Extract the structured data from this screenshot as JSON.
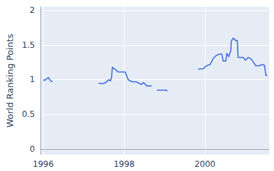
{
  "chart_data": {
    "type": "line",
    "y_label": "World Ranking Points",
    "x": [
      1996.0,
      1996.03,
      1996.06,
      1996.1,
      1996.13,
      1996.16,
      1996.19,
      1996.23,
      1996.8,
      1997.37,
      1997.44,
      1997.52,
      1997.57,
      1997.62,
      1997.66,
      1997.69,
      1997.71,
      1997.86,
      1998.03,
      1998.1,
      1998.19,
      1998.29,
      1998.33,
      1998.43,
      1998.48,
      1998.56,
      1998.68,
      1998.75,
      1998.81,
      1999.05,
      1999.06,
      1999.5,
      1999.83,
      1999.97,
      2000.03,
      2000.13,
      2000.2,
      2000.28,
      2000.37,
      2000.42,
      2000.45,
      2000.52,
      2000.54,
      2000.59,
      2000.64,
      2000.65,
      2000.7,
      2000.77,
      2000.8,
      2000.82,
      2000.95,
      2001.0,
      2001.07,
      2001.14,
      2001.19,
      2001.26,
      2001.34,
      2001.41,
      2001.47,
      2001.51,
      2001.54
    ],
    "values": [
      1.0,
      0.99,
      1.0,
      1.02,
      1.03,
      1.0,
      0.98,
      0.97,
      null,
      0.95,
      0.94,
      0.95,
      0.97,
      1.0,
      0.98,
      1.03,
      1.18,
      1.11,
      1.11,
      1.0,
      0.97,
      0.97,
      0.96,
      0.93,
      0.96,
      0.91,
      0.91,
      null,
      0.85,
      0.85,
      0.83,
      null,
      1.15,
      1.16,
      1.2,
      1.22,
      1.3,
      1.35,
      1.37,
      1.37,
      1.27,
      1.27,
      1.38,
      1.33,
      1.42,
      1.55,
      1.6,
      1.56,
      1.57,
      1.32,
      1.32,
      1.28,
      1.32,
      1.3,
      1.26,
      1.2,
      1.2,
      1.22,
      1.21,
      1.06,
      1.06
    ],
    "color": "#4169e1",
    "xlim": [
      1995.93,
      2001.59
    ],
    "xticks": [
      1996,
      1998,
      2000
    ],
    "ylim": [
      -0.08,
      2.05
    ],
    "yticks": [
      0,
      0.5,
      1,
      1.5,
      2
    ],
    "grid": true
  }
}
